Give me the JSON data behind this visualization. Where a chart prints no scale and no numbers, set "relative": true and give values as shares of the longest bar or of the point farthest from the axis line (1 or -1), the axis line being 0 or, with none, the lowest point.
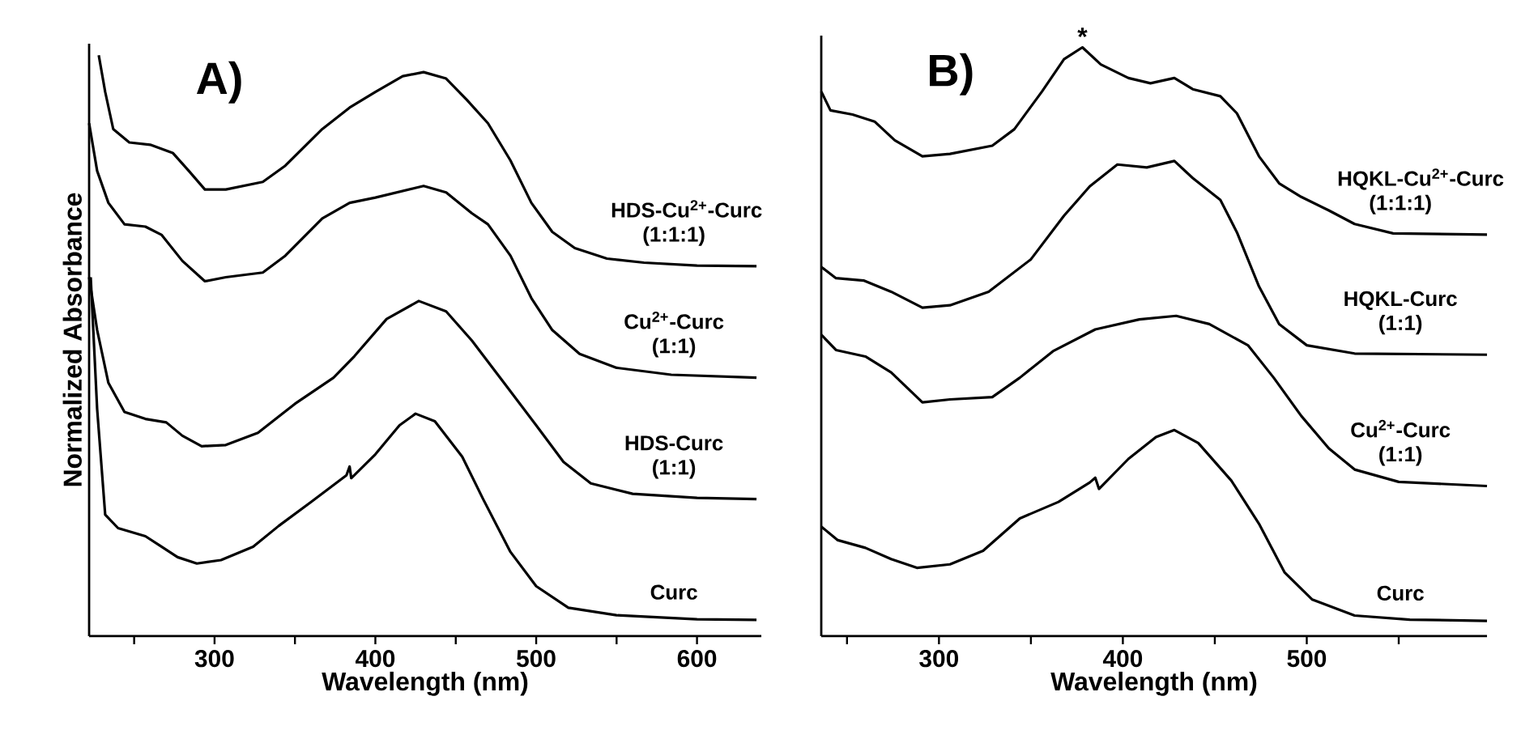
{
  "chart_data": [
    {
      "type": "line",
      "title": "A)",
      "xlabel": "Wavelength (nm)",
      "ylabel": "Normalized Absorbance",
      "relative": true,
      "xlim": [
        222,
        640
      ],
      "xticks": [
        {
          "value": 250,
          "label": null
        },
        300,
        {
          "value": 350,
          "label": null
        },
        400,
        {
          "value": 450,
          "label": null
        },
        500,
        {
          "value": 550,
          "label": null
        },
        600
      ],
      "series": [
        {
          "name": "HDS-Cu$^{2+}$-Curc (1:1:1)",
          "color": "#000000",
          "x": [
            228,
            232,
            237,
            247,
            260,
            274,
            284,
            294,
            307,
            330,
            344,
            367,
            384,
            400,
            417,
            430,
            444,
            457,
            470,
            484,
            497,
            510,
            524,
            544,
            567,
            600,
            637
          ],
          "values": [
            1.0,
            0.937,
            0.873,
            0.85,
            0.846,
            0.832,
            0.801,
            0.769,
            0.769,
            0.782,
            0.81,
            0.873,
            0.91,
            0.937,
            0.964,
            0.971,
            0.96,
            0.923,
            0.883,
            0.819,
            0.746,
            0.696,
            0.668,
            0.65,
            0.643,
            0.638,
            0.637
          ]
        },
        {
          "name": "Cu$^{2+}$-Curc (1:1)",
          "color": "#000000",
          "x": [
            222,
            227,
            234,
            244,
            257,
            267,
            280,
            294,
            307,
            330,
            344,
            367,
            384,
            400,
            430,
            444,
            460,
            470,
            484,
            497,
            510,
            527,
            550,
            584,
            637
          ],
          "values": [
            0.883,
            0.801,
            0.746,
            0.709,
            0.705,
            0.691,
            0.646,
            0.611,
            0.618,
            0.626,
            0.655,
            0.719,
            0.746,
            0.755,
            0.775,
            0.764,
            0.728,
            0.709,
            0.655,
            0.582,
            0.527,
            0.486,
            0.462,
            0.45,
            0.445
          ]
        },
        {
          "name": "HDS-Curc (1:1)",
          "color": "#000000",
          "x": [
            222,
            227,
            234,
            244,
            257,
            270,
            280,
            292,
            307,
            327,
            350,
            374,
            387,
            407,
            427,
            444,
            460,
            480,
            500,
            517,
            534,
            560,
            600,
            637
          ],
          "values": [
            0.618,
            0.527,
            0.436,
            0.386,
            0.374,
            0.368,
            0.345,
            0.327,
            0.329,
            0.35,
            0.4,
            0.445,
            0.482,
            0.546,
            0.577,
            0.559,
            0.509,
            0.436,
            0.363,
            0.3,
            0.263,
            0.245,
            0.238,
            0.236
          ]
        },
        {
          "name": "Curc",
          "color": "#000000",
          "x": [
            223,
            227,
            232,
            240,
            257,
            267,
            277,
            289,
            304,
            324,
            340,
            360,
            382,
            384,
            385,
            400,
            415,
            425,
            437,
            454,
            467,
            484,
            500,
            520,
            550,
            600,
            637
          ],
          "values": [
            0.618,
            0.391,
            0.209,
            0.186,
            0.172,
            0.154,
            0.136,
            0.125,
            0.131,
            0.154,
            0.19,
            0.231,
            0.277,
            0.292,
            0.272,
            0.313,
            0.363,
            0.383,
            0.37,
            0.309,
            0.236,
            0.145,
            0.086,
            0.049,
            0.036,
            0.029,
            0.028
          ]
        }
      ]
    },
    {
      "type": "line",
      "title": "B)",
      "xlabel": "Wavelength (nm)",
      "relative": true,
      "xlim": [
        236,
        598
      ],
      "xticks": [
        {
          "value": 250,
          "label": null
        },
        300,
        {
          "value": 350,
          "label": null
        },
        400,
        {
          "value": 450,
          "label": null
        },
        500,
        {
          "value": 550,
          "label": null
        }
      ],
      "annotations": [
        {
          "text": "*",
          "x": 378,
          "y": 1.0
        }
      ],
      "series": [
        {
          "name": "HQKL-Cu$^{2+}$-Curc (1:1:1)",
          "color": "#000000",
          "x": [
            236,
            241,
            253,
            265,
            276,
            291,
            306,
            329,
            341,
            356,
            368,
            378,
            388,
            403,
            415,
            428,
            438,
            453,
            462,
            474,
            485,
            497,
            512,
            526,
            547,
            598
          ],
          "values": [
            0.925,
            0.893,
            0.886,
            0.874,
            0.842,
            0.815,
            0.819,
            0.833,
            0.861,
            0.925,
            0.98,
            1.0,
            0.971,
            0.948,
            0.939,
            0.948,
            0.929,
            0.917,
            0.888,
            0.815,
            0.769,
            0.746,
            0.723,
            0.7,
            0.684,
            0.682
          ]
        },
        {
          "name": "HQKL-Curc (1:1)",
          "color": "#000000",
          "x": [
            236,
            244,
            259,
            274,
            291,
            306,
            327,
            350,
            368,
            382,
            397,
            413,
            428,
            438,
            453,
            462,
            474,
            485,
            500,
            526,
            598
          ],
          "values": [
            0.627,
            0.608,
            0.604,
            0.585,
            0.558,
            0.562,
            0.585,
            0.64,
            0.714,
            0.764,
            0.801,
            0.796,
            0.807,
            0.778,
            0.741,
            0.686,
            0.594,
            0.53,
            0.494,
            0.48,
            0.478
          ]
        },
        {
          "name": "Cu$^{2+}$-Curc (1:1)",
          "color": "#000000",
          "x": [
            236,
            244,
            260,
            274,
            291,
            306,
            329,
            344,
            362,
            385,
            409,
            429,
            447,
            468,
            482,
            497,
            512,
            526,
            550,
            598
          ],
          "values": [
            0.512,
            0.486,
            0.475,
            0.448,
            0.397,
            0.402,
            0.406,
            0.439,
            0.484,
            0.521,
            0.538,
            0.544,
            0.53,
            0.494,
            0.439,
            0.374,
            0.319,
            0.283,
            0.262,
            0.255
          ]
        },
        {
          "name": "Curc",
          "color": "#000000",
          "x": [
            236,
            245,
            260,
            274,
            288,
            306,
            324,
            344,
            365,
            382,
            385,
            387,
            403,
            418,
            428,
            441,
            459,
            474,
            488,
            503,
            526,
            556,
            598
          ],
          "values": [
            0.186,
            0.163,
            0.15,
            0.131,
            0.116,
            0.122,
            0.145,
            0.2,
            0.228,
            0.261,
            0.269,
            0.25,
            0.301,
            0.338,
            0.35,
            0.328,
            0.264,
            0.191,
            0.108,
            0.062,
            0.035,
            0.028,
            0.026
          ]
        }
      ]
    }
  ]
}
